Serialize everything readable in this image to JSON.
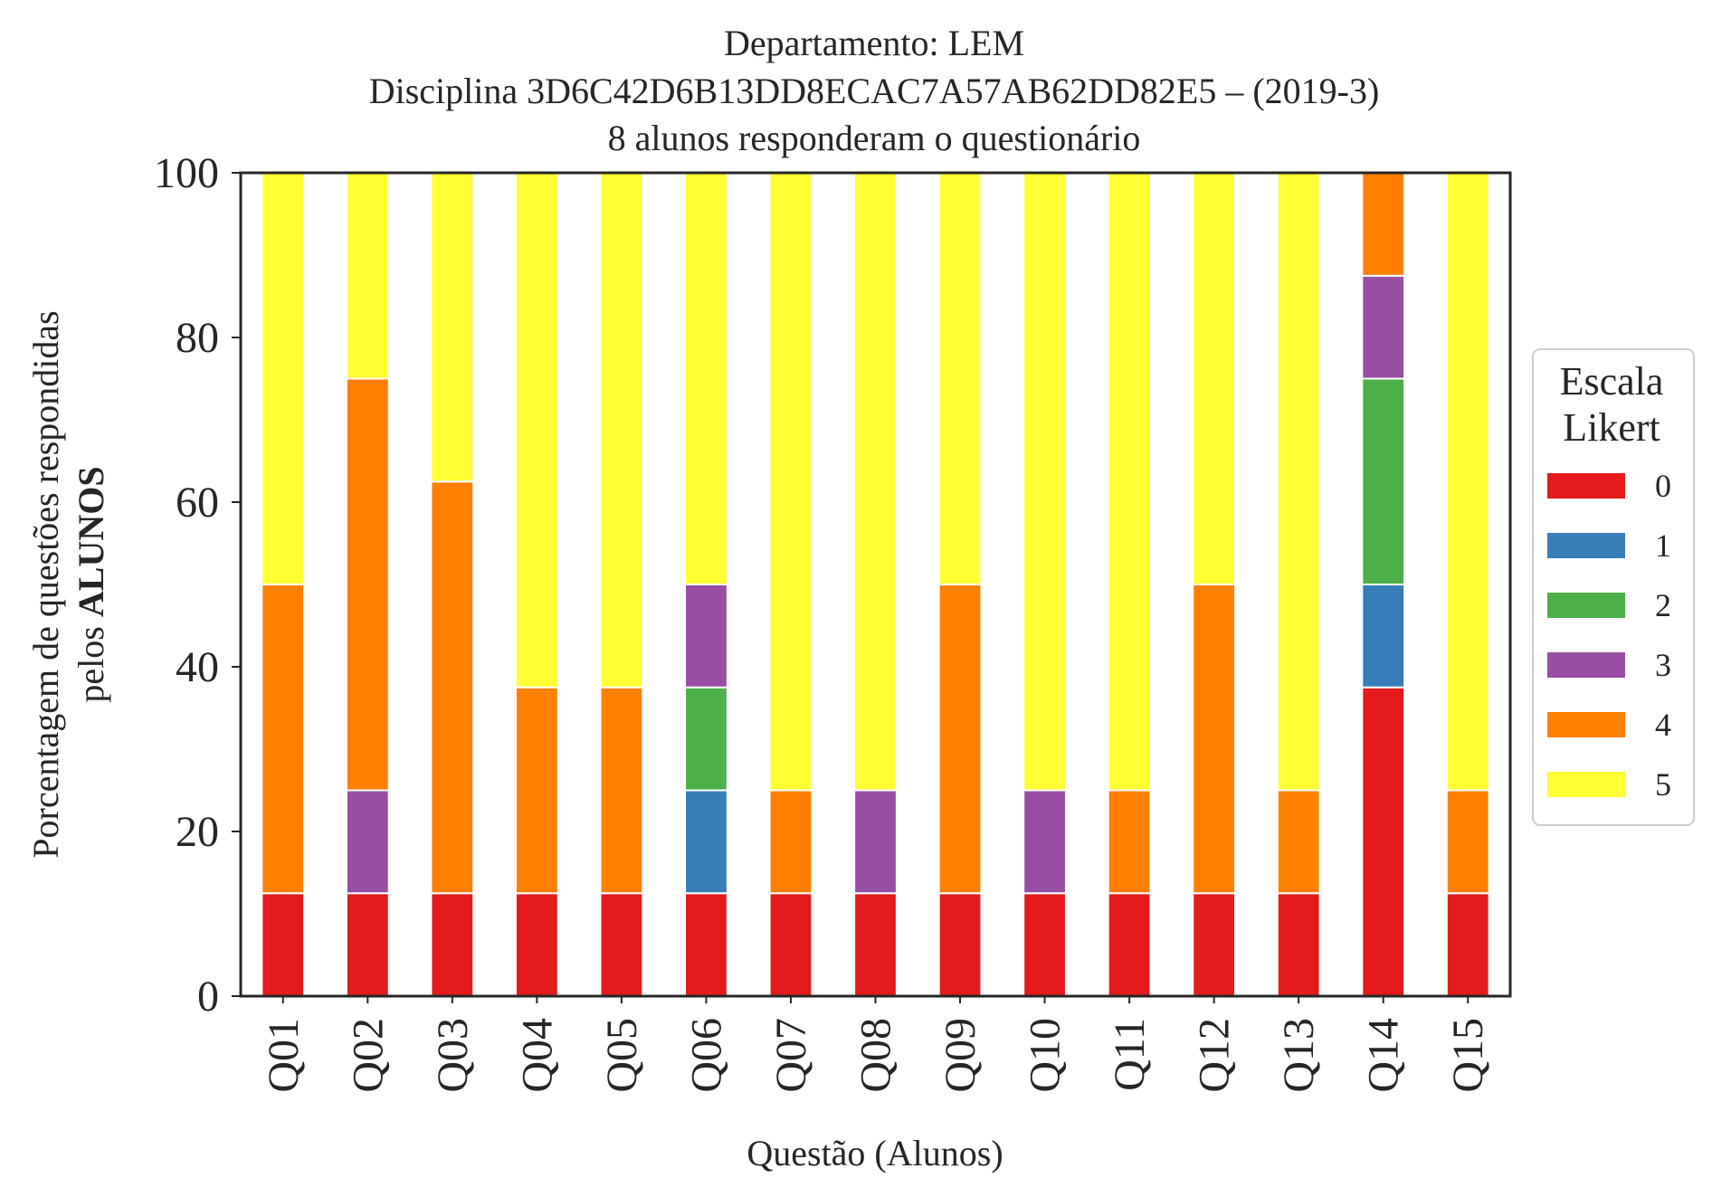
{
  "chart_data": {
    "type": "bar",
    "stacked": true,
    "title_lines": [
      "Departamento: LEM",
      "Disciplina 3D6C42D6B13DD8ECAC7A57AB62DD82E5 – (2019-3)",
      "8 alunos responderam o questionário"
    ],
    "xlabel": "Questão (Alunos)",
    "ylabel_line1": "Porcentagem de questões respondidas",
    "ylabel_line2_prefix": "pelos ",
    "ylabel_line2_bold": "ALUNOS",
    "ylim": [
      0,
      100
    ],
    "yticks": [
      0,
      20,
      40,
      60,
      80,
      100
    ],
    "grid": false,
    "legend": {
      "title_lines": [
        "Escala",
        "Likert"
      ],
      "placement": "right-center"
    },
    "categories": [
      "Q01",
      "Q02",
      "Q03",
      "Q04",
      "Q05",
      "Q06",
      "Q07",
      "Q08",
      "Q09",
      "Q10",
      "Q11",
      "Q12",
      "Q13",
      "Q14",
      "Q15"
    ],
    "series": [
      {
        "name": "0",
        "color": "#e41a1c",
        "values": [
          12.5,
          12.5,
          12.5,
          12.5,
          12.5,
          12.5,
          12.5,
          12.5,
          12.5,
          12.5,
          12.5,
          12.5,
          12.5,
          37.5,
          12.5
        ]
      },
      {
        "name": "1",
        "color": "#377eb8",
        "values": [
          0,
          0,
          0,
          0,
          0,
          12.5,
          0,
          0,
          0,
          0,
          0,
          0,
          0,
          12.5,
          0
        ]
      },
      {
        "name": "2",
        "color": "#4daf4a",
        "values": [
          0,
          0,
          0,
          0,
          0,
          12.5,
          0,
          0,
          0,
          0,
          0,
          0,
          0,
          25,
          0
        ]
      },
      {
        "name": "3",
        "color": "#984ea3",
        "values": [
          0,
          12.5,
          0,
          0,
          0,
          12.5,
          0,
          12.5,
          0,
          12.5,
          0,
          0,
          0,
          12.5,
          0
        ]
      },
      {
        "name": "4",
        "color": "#ff7f00",
        "values": [
          37.5,
          50,
          50,
          25,
          25,
          0,
          12.5,
          0,
          37.5,
          0,
          12.5,
          37.5,
          12.5,
          12.5,
          12.5
        ]
      },
      {
        "name": "5",
        "color": "#ffff33",
        "values": [
          50,
          25,
          37.5,
          62.5,
          62.5,
          50,
          75,
          75,
          50,
          75,
          75,
          50,
          75,
          0,
          75
        ]
      }
    ]
  }
}
